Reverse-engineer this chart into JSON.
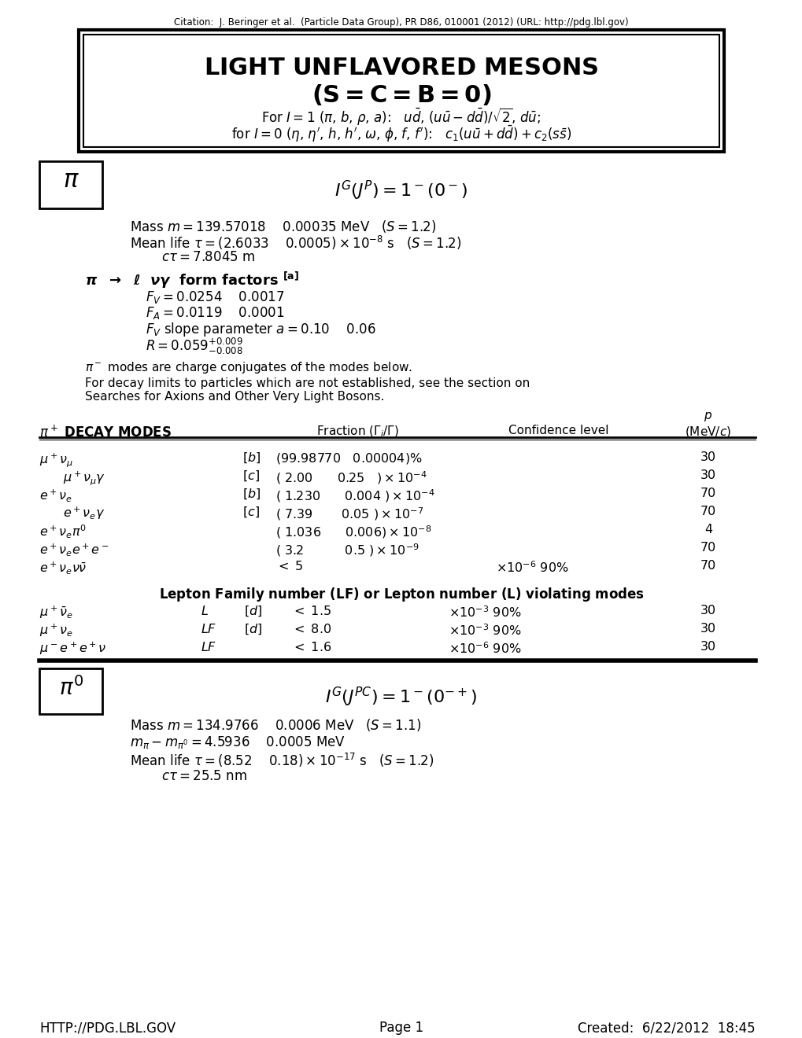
{
  "citation": "Citation:  J. Beringer et al.  (Particle Data Group), PR D86, 010001 (2012) (URL: http://pdg.lbl.gov)",
  "footer_left": "HTTP://PDG.LBL.GOV",
  "footer_center": "Page 1",
  "footer_right": "Created:  6/22/2012  18:45",
  "bg_color": "#ffffff"
}
